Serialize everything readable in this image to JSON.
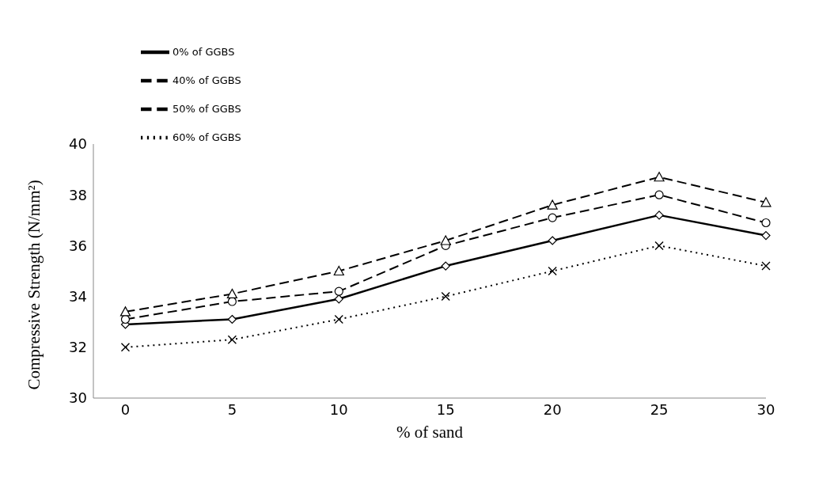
{
  "chart_data": {
    "type": "line",
    "xlabel": "% of sand",
    "ylabel": "Compressive Strength (N/mm²)",
    "x": [
      0,
      5,
      10,
      15,
      20,
      25,
      30
    ],
    "xlim": [
      -1.5,
      30
    ],
    "xticks": [
      0,
      5,
      10,
      15,
      20,
      25,
      30
    ],
    "ylim": [
      30,
      40
    ],
    "yticks": [
      30,
      32,
      34,
      36,
      38,
      40
    ],
    "grid": false,
    "legend": "top left",
    "series": [
      {
        "name": "0% of GGBS",
        "color": "#000000",
        "marker": "diamond",
        "line_style": "solid",
        "values": [
          32.9,
          33.1,
          33.9,
          35.2,
          36.2,
          37.2,
          36.4
        ]
      },
      {
        "name": "40% of GGBS",
        "color": "#000000",
        "marker": "circle",
        "line_style": "dashed",
        "values": [
          33.1,
          33.8,
          34.2,
          36.0,
          37.1,
          38.0,
          36.9
        ]
      },
      {
        "name": "50% of GGBS",
        "color": "#000000",
        "marker": "triangle",
        "line_style": "dashed",
        "values": [
          33.4,
          34.1,
          35.0,
          36.2,
          37.6,
          38.7,
          37.7
        ]
      },
      {
        "name": "60% of GGBS",
        "color": "#000000",
        "marker": "cross",
        "line_style": "dotted",
        "values": [
          32.0,
          32.3,
          33.1,
          34.0,
          35.0,
          36.0,
          35.2
        ]
      }
    ]
  }
}
